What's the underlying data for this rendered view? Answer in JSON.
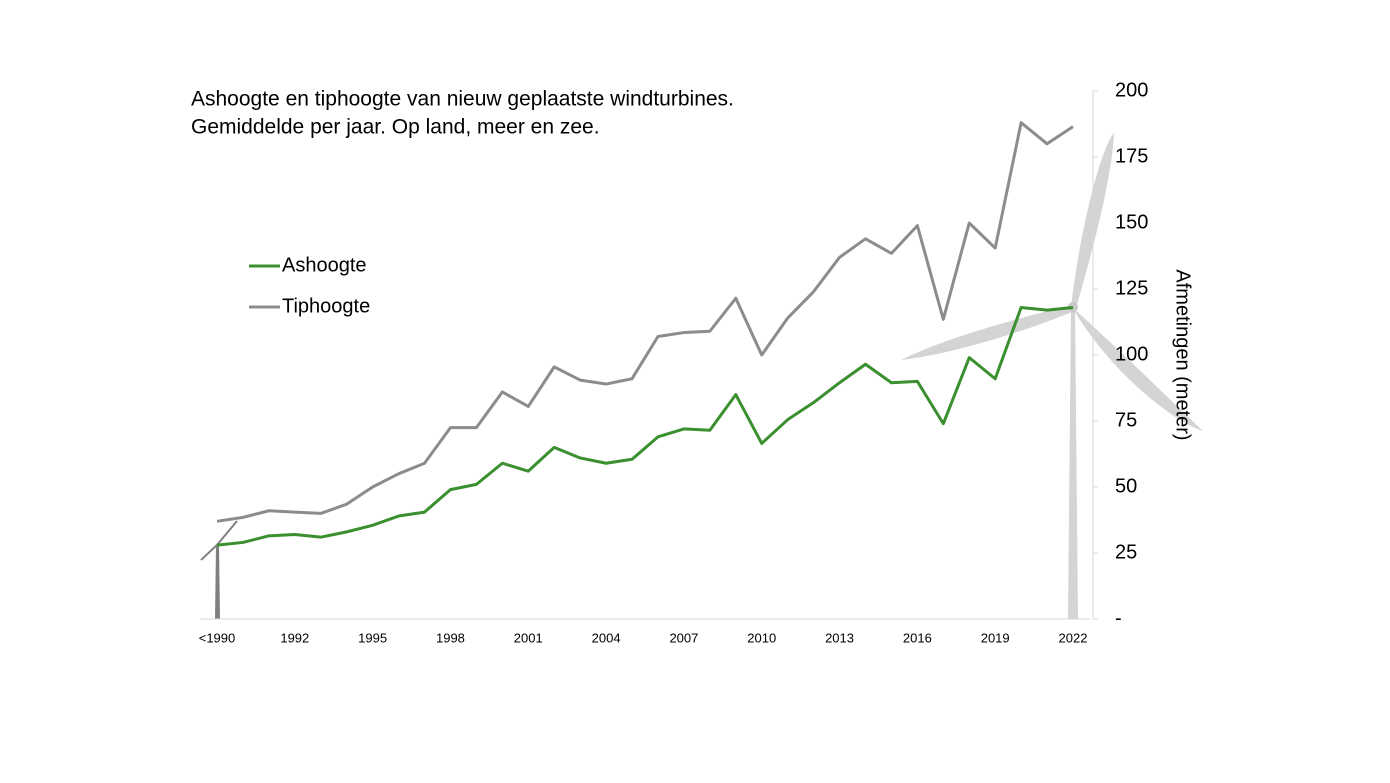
{
  "chart_data": {
    "type": "line",
    "title": "Ashoogte en tiphoogte van nieuw geplaatste windturbines.",
    "subtitle": "Gemiddelde per jaar. Op land, meer en zee.",
    "y_label": "Afmetingen (meter)",
    "categories": [
      "<1990",
      null,
      null,
      "1992",
      null,
      null,
      "1995",
      null,
      null,
      "1998",
      null,
      null,
      "2001",
      null,
      null,
      "2004",
      null,
      null,
      "2007",
      null,
      null,
      "2010",
      null,
      null,
      "2013",
      null,
      null,
      "2016",
      null,
      null,
      "2019",
      null,
      null,
      "2022"
    ],
    "series": [
      {
        "name": "Ashoogte",
        "color": "#3a8f2e",
        "values": [
          28,
          29,
          31.5,
          32,
          31,
          33,
          35.5,
          39,
          40.5,
          49,
          51,
          59,
          56,
          65,
          61,
          59,
          60.5,
          69,
          72,
          71.5,
          85,
          66.5,
          75.5,
          82,
          89.5,
          96.5,
          89.5,
          90,
          74,
          99,
          91,
          118,
          117,
          118
        ]
      },
      {
        "name": "Tiphoogte",
        "color": "#8c8c8c",
        "values": [
          37,
          38.5,
          41,
          40.5,
          40,
          43.5,
          50,
          55,
          59,
          72.5,
          72.5,
          86,
          80.5,
          95.5,
          90.5,
          89,
          91,
          107,
          108.5,
          109,
          121.5,
          100,
          114,
          124,
          137,
          144,
          138.5,
          149,
          113.5,
          150,
          140.5,
          188,
          180,
          186.5
        ]
      }
    ],
    "ylim": [
      0,
      200
    ],
    "yticks": [
      {
        "value": 0,
        "label": "-"
      },
      25,
      50,
      75,
      100,
      125,
      150,
      175,
      200
    ],
    "y_axis_side": "right",
    "legend": "left"
  }
}
